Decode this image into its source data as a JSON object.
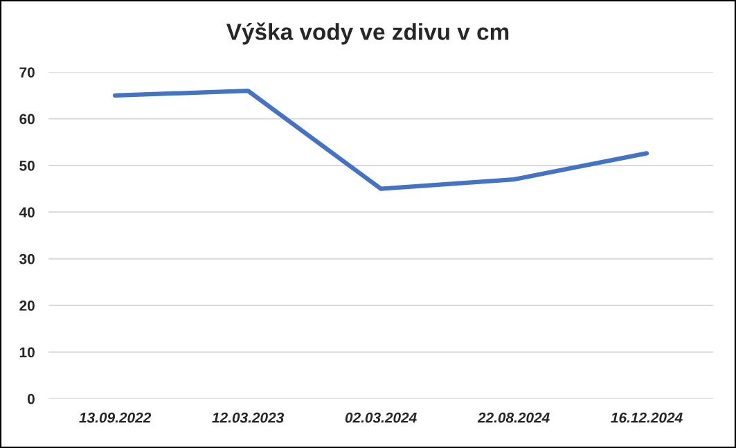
{
  "chart_data": {
    "type": "line",
    "title": "Výška vody ve zdivu v cm",
    "categories": [
      "13.09.2022",
      "12.03.2023",
      "02.03.2024",
      "22.08.2024",
      "16.12.2024"
    ],
    "series": [
      {
        "color": "#4472c4",
        "values": [
          65,
          66,
          45,
          47,
          52.6
        ]
      }
    ],
    "ylim": [
      0,
      70
    ],
    "yticks": [
      0,
      10,
      20,
      30,
      40,
      50,
      60,
      70
    ],
    "grid": "y",
    "legend": false,
    "marker": "none",
    "line_style": "solid"
  }
}
